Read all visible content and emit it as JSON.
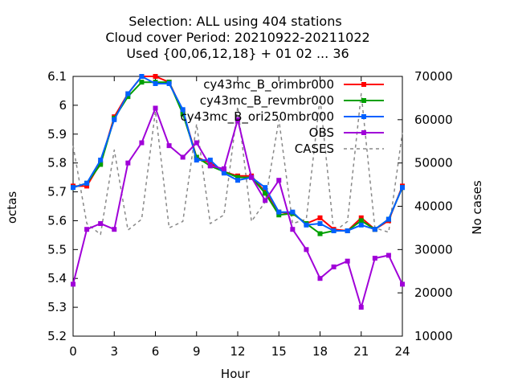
{
  "chart_data": {
    "type": "line",
    "title": [
      "Selection: ALL using   404 stations",
      "Cloud cover   Period: 20210922-20211022",
      "Used {00,06,12,18} + 01 02 ... 36"
    ],
    "xlabel": "Hour",
    "ylabel": "octas",
    "y2label": "No cases",
    "xlim": [
      0,
      24
    ],
    "ylim": [
      5.2,
      6.1
    ],
    "y2lim": [
      10000,
      70000
    ],
    "xticks": [
      "0",
      "3",
      "6",
      "9",
      "12",
      "15",
      "18",
      "21",
      "24"
    ],
    "yticks": [
      "5.2",
      "5.3",
      "5.4",
      "5.5",
      "5.6",
      "5.7",
      "5.8",
      "5.9",
      "6",
      "6.1"
    ],
    "y2ticks": [
      "10000",
      "20000",
      "30000",
      "40000",
      "50000",
      "60000",
      "70000"
    ],
    "grid": false,
    "legend_position": "top-right",
    "x": [
      0,
      1,
      2,
      3,
      4,
      5,
      6,
      7,
      8,
      9,
      10,
      11,
      12,
      13,
      14,
      15,
      16,
      17,
      18,
      19,
      20,
      21,
      22,
      23,
      24
    ],
    "series": [
      {
        "name": "cy43mc_B_orimbr000",
        "color": "#ff0000",
        "axis": "left",
        "style": "solid-points",
        "values": [
          5.72,
          5.72,
          5.8,
          5.96,
          6.04,
          6.1,
          6.1,
          6.08,
          5.98,
          5.82,
          5.8,
          5.77,
          5.755,
          5.755,
          5.7,
          5.63,
          5.625,
          5.59,
          5.61,
          5.57,
          5.565,
          5.61,
          5.57,
          5.6,
          5.72
        ]
      },
      {
        "name": "cy43mc_B_revmbr000",
        "color": "#00a000",
        "axis": "left",
        "style": "solid-points",
        "values": [
          5.715,
          5.73,
          5.795,
          5.955,
          6.03,
          6.08,
          6.08,
          6.08,
          5.97,
          5.82,
          5.79,
          5.77,
          5.75,
          5.75,
          5.695,
          5.62,
          5.625,
          5.59,
          5.555,
          5.565,
          5.565,
          5.6,
          5.57,
          5.605,
          5.715
        ]
      },
      {
        "name": "cy43mc_B_ori250mbr000",
        "color": "#0060ff",
        "axis": "left",
        "style": "solid-points",
        "values": [
          5.715,
          5.73,
          5.81,
          5.95,
          6.04,
          6.1,
          6.075,
          6.075,
          5.985,
          5.81,
          5.81,
          5.765,
          5.74,
          5.75,
          5.715,
          5.63,
          5.63,
          5.585,
          5.59,
          5.565,
          5.565,
          5.585,
          5.57,
          5.605,
          5.715
        ]
      },
      {
        "name": "OBS",
        "color": "#a000d8",
        "axis": "left",
        "style": "solid-points",
        "values": [
          5.38,
          5.57,
          5.59,
          5.57,
          5.8,
          5.87,
          5.99,
          5.86,
          5.82,
          5.87,
          5.79,
          5.78,
          5.95,
          5.75,
          5.67,
          5.74,
          5.57,
          5.5,
          5.4,
          5.44,
          5.46,
          5.3,
          5.47,
          5.48,
          5.38
        ]
      },
      {
        "name": "CASES",
        "color": "#888888",
        "axis": "right",
        "style": "dashed",
        "values": [
          54000,
          36000,
          33500,
          53000,
          34500,
          37000,
          62000,
          35000,
          36500,
          59000,
          36000,
          38000,
          63000,
          36500,
          41000,
          60000,
          36000,
          37000,
          65000,
          34000,
          36500,
          66000,
          35000,
          34000,
          57000
        ]
      }
    ]
  }
}
